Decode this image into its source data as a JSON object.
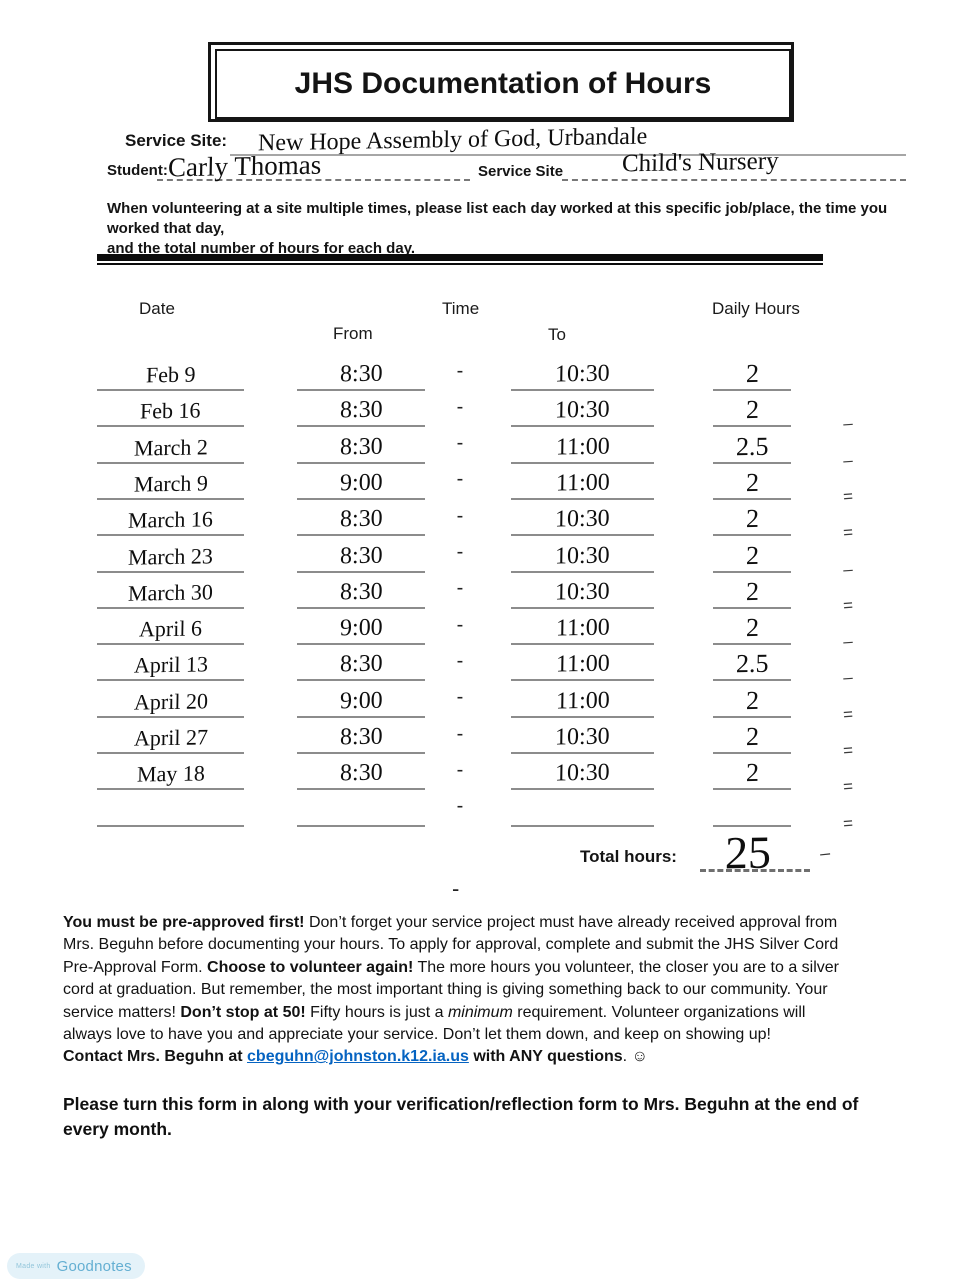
{
  "header": {
    "title": "JHS Documentation of Hours",
    "service_site_label": "Service Site:",
    "service_site_value": "New Hope Assembly of God, Urbandale",
    "student_label": "Student:",
    "student_value": "Carly Thomas",
    "service_site_inline_label": "Service Site",
    "service_site_inline_value": "Child's Nursery",
    "instructions_lines": [
      "When volunteering at a site multiple times, please list each day worked at this specific job/place, the time you worked that day,",
      "and the total number of hours for each day."
    ]
  },
  "table": {
    "headers": {
      "date": "Date",
      "time": "Time",
      "from": "From",
      "to": "To",
      "daily_hours": "Daily Hours"
    },
    "range_separator": "-",
    "rows": [
      {
        "date": "Feb 9",
        "from": "8:30",
        "to": "10:30",
        "hours": "2",
        "stray": ""
      },
      {
        "date": "Feb 16",
        "from": "8:30",
        "to": "10:30",
        "hours": "2",
        "stray": "–"
      },
      {
        "date": "March 2",
        "from": "8:30",
        "to": "11:00",
        "hours": "2.5",
        "stray": "–"
      },
      {
        "date": "March 9",
        "from": "9:00",
        "to": "11:00",
        "hours": "2",
        "stray": "="
      },
      {
        "date": "March 16",
        "from": "8:30",
        "to": "10:30",
        "hours": "2",
        "stray": "="
      },
      {
        "date": "March 23",
        "from": "8:30",
        "to": "10:30",
        "hours": "2",
        "stray": "–"
      },
      {
        "date": "March 30",
        "from": "8:30",
        "to": "10:30",
        "hours": "2",
        "stray": "="
      },
      {
        "date": "April 6",
        "from": "9:00",
        "to": "11:00",
        "hours": "2",
        "stray": "–"
      },
      {
        "date": "April 13",
        "from": "8:30",
        "to": "11:00",
        "hours": "2.5",
        "stray": "–"
      },
      {
        "date": "April 20",
        "from": "9:00",
        "to": "11:00",
        "hours": "2",
        "stray": "="
      },
      {
        "date": "April 27",
        "from": "8:30",
        "to": "10:30",
        "hours": "2",
        "stray": "="
      },
      {
        "date": "May 18",
        "from": "8:30",
        "to": "10:30",
        "hours": "2",
        "stray": "="
      },
      {
        "date": "",
        "from": "",
        "to": "",
        "hours": "",
        "stray": "="
      }
    ],
    "total_label": "Total hours:",
    "total_value": "25",
    "total_stray_mark": "–",
    "below_table_mark": "-"
  },
  "body": {
    "segments": [
      {
        "t": "You must be pre-approved first!",
        "s": "bold"
      },
      {
        "t": " Don’t forget your service project must have already received approval from",
        "s": "regular"
      },
      {
        "br": true
      },
      {
        "t": "Mrs. Beguhn before documenting your hours. To apply for approval, complete and submit the JHS Silver Cord",
        "s": "regular"
      },
      {
        "br": true
      },
      {
        "t": "Pre-Approval Form. ",
        "s": "regular"
      },
      {
        "t": "Choose to volunteer again!",
        "s": "bold"
      },
      {
        "t": " The more hours you volunteer, the closer you are to a silver",
        "s": "regular"
      },
      {
        "br": true
      },
      {
        "t": "cord at graduation. But remember, the most important thing is giving something back to our community.  Your",
        "s": "regular"
      },
      {
        "br": true
      },
      {
        "t": "service matters!  ",
        "s": "regular"
      },
      {
        "t": "Don’t stop at 50!",
        "s": "bold"
      },
      {
        "t": " Fifty hours is just a ",
        "s": "regular"
      },
      {
        "t": "minimum",
        "s": "italic"
      },
      {
        "t": " requirement. Volunteer organizations will",
        "s": "regular"
      },
      {
        "br": true
      },
      {
        "t": "always love to have you and appreciate your service. Don’t let them down, and keep on showing up!",
        "s": "regular"
      },
      {
        "br": true
      },
      {
        "t": "Contact Mrs. Beguhn at ",
        "s": "bold"
      },
      {
        "t": "cbeguhn@johnston.k12.ia.us",
        "s": "link"
      },
      {
        "t": " with ANY questions",
        "s": "bold"
      },
      {
        "t": ". ☺",
        "s": "regular"
      }
    ]
  },
  "closing": {
    "lines": [
      "Please turn this form in along with your verification/reflection form to Mrs. Beguhn at the end of",
      "every month."
    ]
  },
  "badge": {
    "made_with": "Made with",
    "brand": "Goodnotes"
  },
  "colors": {
    "link_blue": "#0563c1",
    "underline_gray": "#8c8c8c",
    "badge_bg": "#e4f2f9",
    "badge_made_text": "#93c6db",
    "badge_brand_text": "#64afd2"
  }
}
